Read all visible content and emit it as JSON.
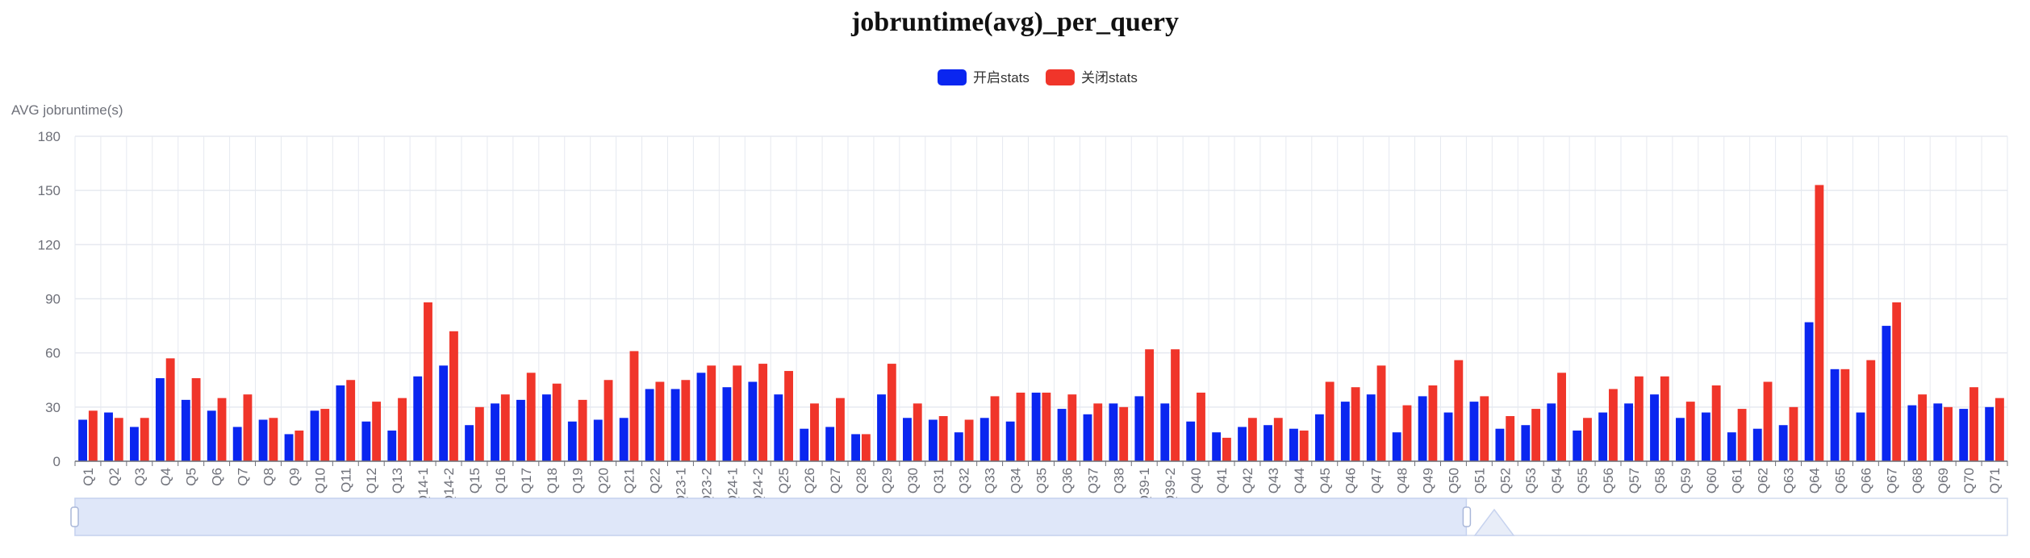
{
  "chart_data": {
    "type": "bar",
    "title": "jobruntime(avg)_per_query",
    "ylabel": "AVG jobruntime(s)",
    "xlabel": "",
    "ylim": [
      0,
      180
    ],
    "yticks": [
      0,
      30,
      60,
      90,
      120,
      150,
      180
    ],
    "grid": true,
    "legend_position": "top-center",
    "colors": {
      "series_on": "#0a26f0",
      "series_off": "#f0352a",
      "grid": "#e6e9f0",
      "axis": "#6e7079",
      "zoom_fill": "#dfe7f9",
      "zoom_border": "#c7d3ef"
    },
    "categories": [
      "Q1",
      "Q2",
      "Q3",
      "Q4",
      "Q5",
      "Q6",
      "Q7",
      "Q8",
      "Q9",
      "Q10",
      "Q11",
      "Q12",
      "Q13",
      "Q14-1",
      "Q14-2",
      "Q15",
      "Q16",
      "Q17",
      "Q18",
      "Q19",
      "Q20",
      "Q21",
      "Q22",
      "Q23-1",
      "Q23-2",
      "Q24-1",
      "Q24-2",
      "Q25",
      "Q26",
      "Q27",
      "Q28",
      "Q29",
      "Q30",
      "Q31",
      "Q32",
      "Q33",
      "Q34",
      "Q35",
      "Q36",
      "Q37",
      "Q38",
      "Q39-1",
      "Q39-2",
      "Q40",
      "Q41",
      "Q42",
      "Q43",
      "Q44",
      "Q45",
      "Q46",
      "Q47",
      "Q48",
      "Q49",
      "Q50",
      "Q51",
      "Q52",
      "Q53",
      "Q54",
      "Q55",
      "Q56",
      "Q57",
      "Q58",
      "Q59",
      "Q60",
      "Q61",
      "Q62",
      "Q63",
      "Q64",
      "Q65",
      "Q66",
      "Q67",
      "Q68",
      "Q69",
      "Q70",
      "Q71"
    ],
    "series": [
      {
        "name": "开启stats",
        "values": [
          23,
          27,
          19,
          46,
          34,
          28,
          19,
          23,
          15,
          28,
          42,
          22,
          17,
          47,
          53,
          20,
          32,
          34,
          37,
          22,
          23,
          24,
          40,
          40,
          49,
          41,
          44,
          37,
          18,
          19,
          15,
          37,
          24,
          23,
          16,
          24,
          22,
          38,
          29,
          26,
          32,
          36,
          32,
          22,
          16,
          19,
          20,
          18,
          26,
          33,
          37,
          16,
          36,
          27,
          33,
          18,
          20,
          32,
          17,
          27,
          32,
          37,
          24,
          27,
          16,
          18,
          20,
          77,
          51,
          27,
          75,
          31,
          32,
          29,
          30
        ]
      },
      {
        "name": "关闭stats",
        "values": [
          28,
          24,
          24,
          57,
          46,
          35,
          37,
          24,
          17,
          29,
          45,
          33,
          35,
          88,
          72,
          30,
          37,
          49,
          43,
          34,
          45,
          61,
          44,
          45,
          53,
          53,
          54,
          50,
          32,
          35,
          15,
          54,
          32,
          25,
          23,
          36,
          38,
          38,
          37,
          32,
          30,
          62,
          62,
          38,
          13,
          24,
          24,
          17,
          44,
          41,
          53,
          31,
          42,
          56,
          36,
          25,
          29,
          49,
          24,
          40,
          47,
          47,
          33,
          42,
          29,
          44,
          30,
          153,
          51,
          56,
          88,
          37,
          30,
          41,
          35
        ]
      }
    ]
  },
  "zoom_slider": {
    "start_percent": 0,
    "end_percent": 72
  }
}
